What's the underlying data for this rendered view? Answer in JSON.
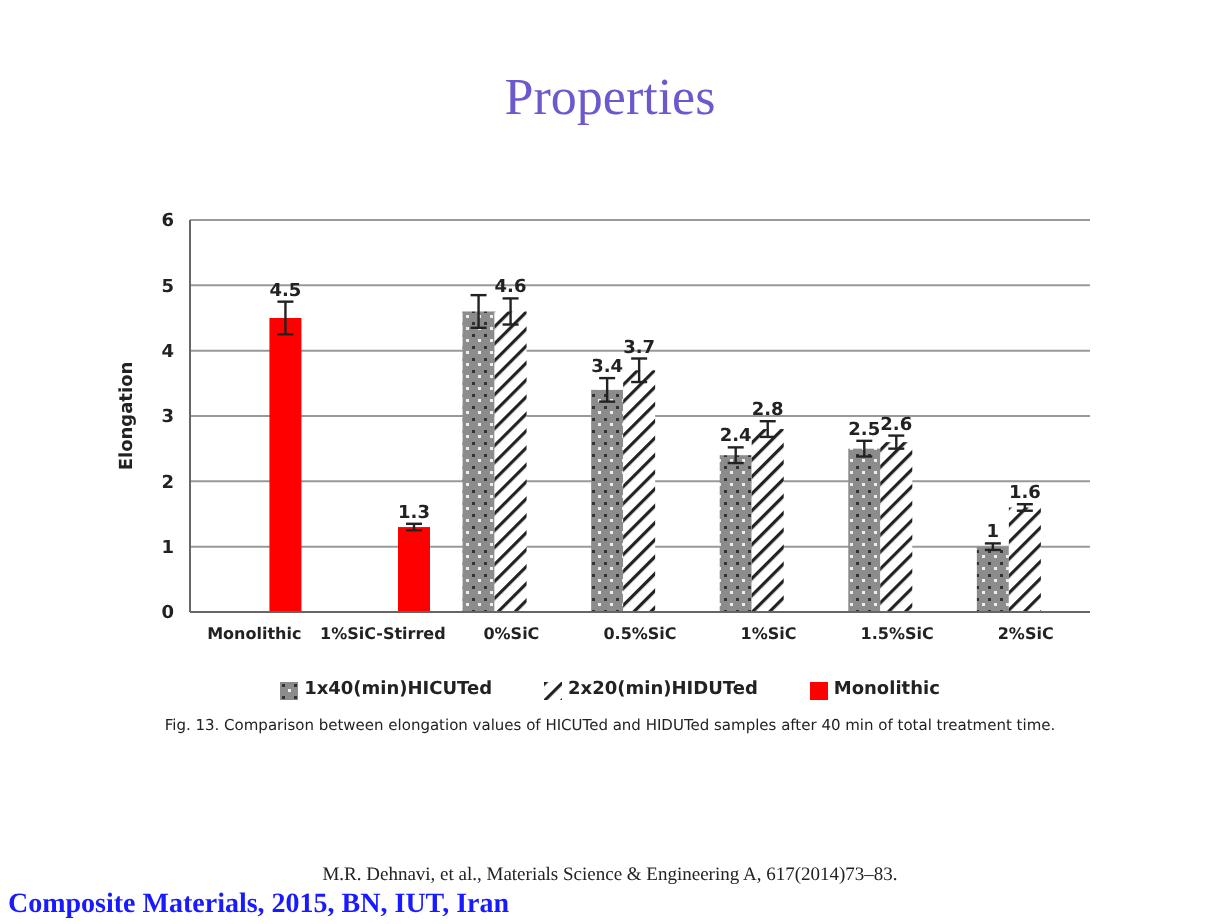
{
  "chart_data": {
    "type": "bar",
    "title": "Properties",
    "ylabel": "Elongation",
    "categories": [
      "Monolithic",
      "1%SiC-Stirred",
      "0%SiC",
      "0.5%SiC",
      "1%SiC",
      "1.5%SiC",
      "2%SiC"
    ],
    "series": [
      {
        "name": "1x40(min)HICUTed",
        "color": "#8c8c8c",
        "values": [
          null,
          null,
          4.6,
          3.4,
          2.4,
          2.5,
          1
        ],
        "errors": [
          null,
          null,
          0.25,
          0.18,
          0.12,
          0.12,
          0.05
        ],
        "value_labels": [
          null,
          null,
          null,
          "3.4",
          "2.4",
          "2.5",
          "1"
        ]
      },
      {
        "name": "2x20(min)HIDUTed",
        "color": "#ffffff",
        "values": [
          null,
          null,
          4.6,
          3.7,
          2.8,
          2.6,
          1.6
        ],
        "errors": [
          null,
          null,
          0.2,
          0.18,
          0.12,
          0.1,
          0.05
        ],
        "value_labels": [
          null,
          null,
          "4.6",
          "3.7",
          "2.8",
          "2.6",
          "1.6"
        ]
      },
      {
        "name": "Monolithic",
        "color": "#ff0000",
        "values": [
          4.5,
          1.3,
          null,
          null,
          null,
          null,
          null
        ],
        "errors": [
          0.25,
          0.05,
          null,
          null,
          null,
          null,
          null
        ],
        "value_labels": [
          "4.5",
          "1.3",
          null,
          null,
          null,
          null,
          null
        ]
      }
    ],
    "ylim": [
      0,
      6
    ],
    "yticks": [
      0,
      1,
      2,
      3,
      4,
      5,
      6
    ],
    "grid": "y",
    "legend": "bottom",
    "annotations": [
      "Fig. 13. Comparison between elongation values of HICUTed and HIDUTed samples after 40 min of total treatment time.",
      "M.R. Dehnavi, et al., Materials Science & Engineering A, 617(2014)73–83.",
      "Composite Materials, 2015, BN, IUT, Iran"
    ]
  }
}
